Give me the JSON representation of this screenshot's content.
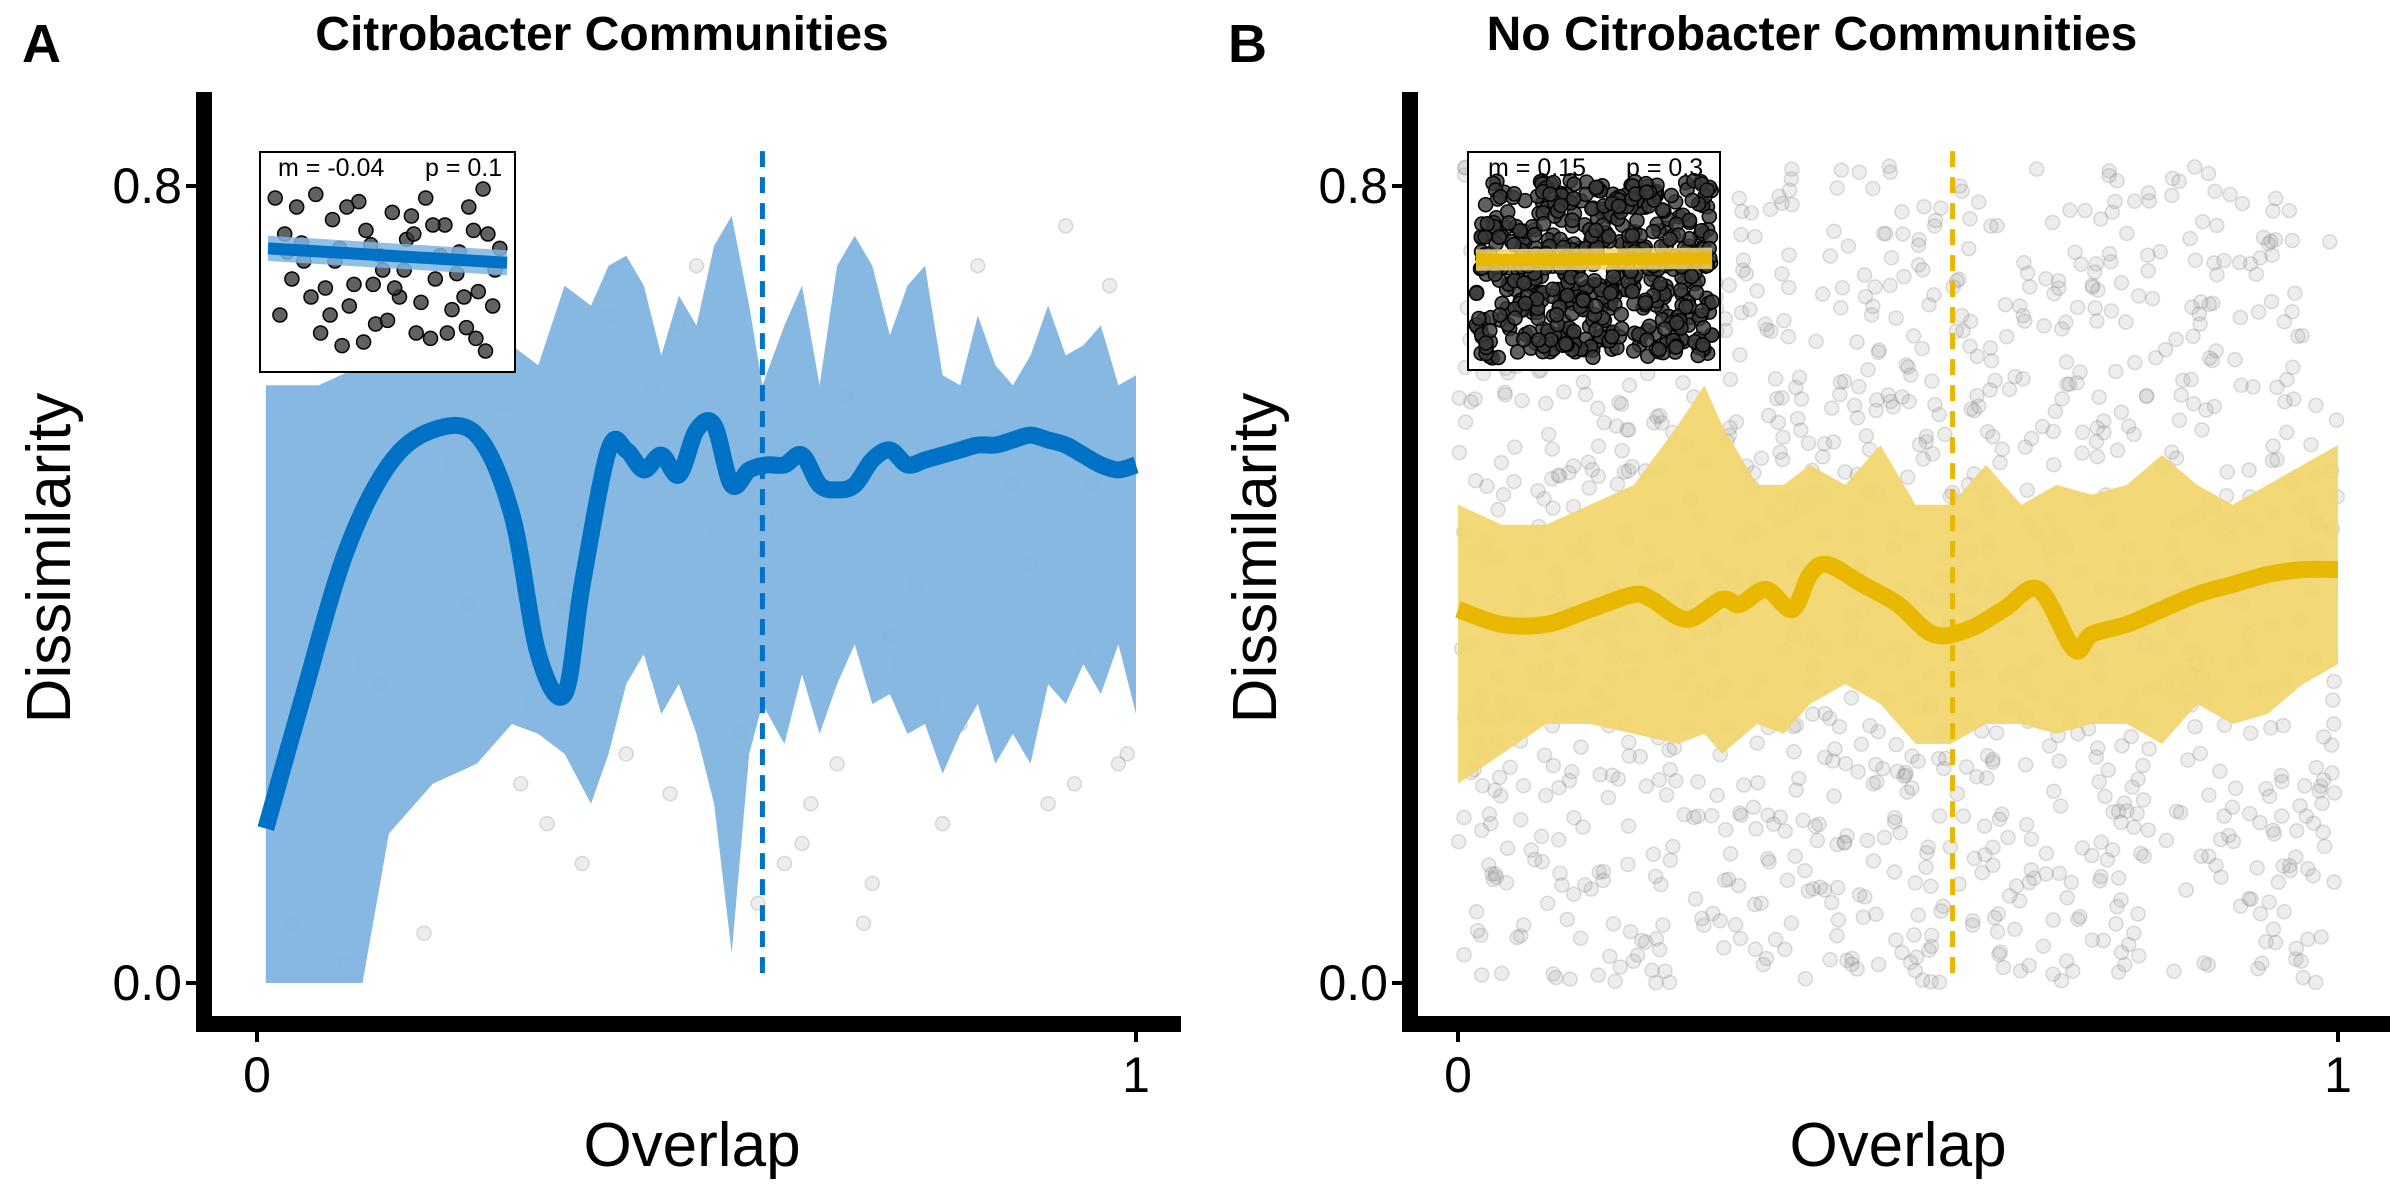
{
  "chart_data": [
    {
      "type": "scatter",
      "panel": "A",
      "title": "Citrobacter Communities",
      "xlabel": "Overlap",
      "ylabel": "Dissimilarity",
      "xlim": [
        0,
        1
      ],
      "ylim": [
        0,
        0.8
      ],
      "x_ticks": [
        {
          "value": 0,
          "label": "0"
        },
        {
          "value": 1,
          "label": "1"
        }
      ],
      "y_ticks": [
        {
          "value": 0.0,
          "label": "0.0"
        },
        {
          "value": 0.8,
          "label": "0.8"
        }
      ],
      "color": "#0072C6",
      "band_color": "#7FB4E0",
      "vline_x": 0.575,
      "smooth_fit": {
        "x": [
          0.01,
          0.05,
          0.1,
          0.15,
          0.2,
          0.25,
          0.29,
          0.32,
          0.35,
          0.37,
          0.4,
          0.42,
          0.44,
          0.46,
          0.48,
          0.5,
          0.52,
          0.54,
          0.56,
          0.58,
          0.6,
          0.62,
          0.64,
          0.66,
          0.68,
          0.7,
          0.72,
          0.74,
          0.76,
          0.78,
          0.8,
          0.82,
          0.84,
          0.86,
          0.88,
          0.9,
          0.92,
          0.94,
          0.96,
          0.98,
          1.0
        ],
        "y": [
          0.155,
          0.28,
          0.43,
          0.52,
          0.555,
          0.55,
          0.47,
          0.33,
          0.29,
          0.4,
          0.535,
          0.535,
          0.515,
          0.53,
          0.51,
          0.555,
          0.56,
          0.5,
          0.515,
          0.52,
          0.52,
          0.53,
          0.5,
          0.495,
          0.5,
          0.525,
          0.535,
          0.52,
          0.525,
          0.53,
          0.535,
          0.54,
          0.54,
          0.545,
          0.55,
          0.545,
          0.54,
          0.53,
          0.52,
          0.515,
          0.52
        ]
      },
      "ci_band": {
        "x": [
          0.01,
          0.07,
          0.12,
          0.15,
          0.2,
          0.25,
          0.29,
          0.32,
          0.35,
          0.38,
          0.4,
          0.42,
          0.44,
          0.46,
          0.48,
          0.5,
          0.52,
          0.54,
          0.56,
          0.575,
          0.6,
          0.62,
          0.64,
          0.66,
          0.68,
          0.7,
          0.72,
          0.74,
          0.76,
          0.78,
          0.8,
          0.82,
          0.84,
          0.86,
          0.88,
          0.9,
          0.92,
          0.94,
          0.96,
          0.98,
          1.0
        ],
        "upper": [
          0.6,
          0.6,
          0.62,
          0.68,
          0.68,
          0.67,
          0.64,
          0.62,
          0.7,
          0.68,
          0.72,
          0.73,
          0.7,
          0.63,
          0.69,
          0.66,
          0.74,
          0.77,
          0.68,
          0.6,
          0.66,
          0.7,
          0.6,
          0.72,
          0.75,
          0.72,
          0.65,
          0.7,
          0.72,
          0.61,
          0.6,
          0.67,
          0.62,
          0.6,
          0.63,
          0.68,
          0.63,
          0.64,
          0.66,
          0.6,
          0.61
        ],
        "lower": [
          0.0,
          0.0,
          0.0,
          0.15,
          0.2,
          0.22,
          0.26,
          0.25,
          0.23,
          0.18,
          0.23,
          0.3,
          0.33,
          0.27,
          0.3,
          0.25,
          0.18,
          0.03,
          0.23,
          0.28,
          0.24,
          0.31,
          0.25,
          0.3,
          0.34,
          0.28,
          0.29,
          0.25,
          0.26,
          0.21,
          0.25,
          0.28,
          0.22,
          0.25,
          0.22,
          0.3,
          0.28,
          0.32,
          0.29,
          0.34,
          0.27
        ]
      },
      "scatter_points": {
        "x": [
          0.04,
          0.1,
          0.16,
          0.19,
          0.24,
          0.3,
          0.33,
          0.37,
          0.42,
          0.47,
          0.5,
          0.55,
          0.58,
          0.62,
          0.66,
          0.7,
          0.73,
          0.77,
          0.82,
          0.86,
          0.9,
          0.94,
          0.97,
          0.08,
          0.14,
          0.28,
          0.35,
          0.45,
          0.63,
          0.69,
          0.75,
          0.8,
          0.88,
          0.93,
          0.98,
          0.05,
          0.22,
          0.4,
          0.52,
          0.6,
          0.72,
          0.84,
          0.92,
          0.99,
          0.12,
          0.31,
          0.48,
          0.57,
          0.67,
          0.78,
          0.95
        ],
        "y": [
          0.06,
          0.02,
          0.68,
          0.05,
          0.38,
          0.2,
          0.16,
          0.12,
          0.23,
          0.19,
          0.72,
          0.25,
          0.47,
          0.14,
          0.22,
          0.1,
          0.32,
          0.28,
          0.72,
          0.5,
          0.18,
          0.33,
          0.7,
          0.45,
          0.3,
          0.58,
          0.38,
          0.6,
          0.18,
          0.06,
          0.4,
          0.26,
          0.42,
          0.2,
          0.22,
          0.63,
          0.52,
          0.67,
          0.45,
          0.12,
          0.35,
          0.55,
          0.76,
          0.23,
          0.32,
          0.28,
          0.66,
          0.08,
          0.59,
          0.16,
          0.5
        ]
      },
      "inset": {
        "slope_label": "m = -0.04",
        "p_label": "p = 0.1",
        "fit_start": 0.62,
        "fit_end": 0.54,
        "ci_halfwidth": 0.07,
        "points": {
          "x": [
            0.03,
            0.07,
            0.12,
            0.15,
            0.2,
            0.24,
            0.27,
            0.3,
            0.34,
            0.38,
            0.41,
            0.45,
            0.48,
            0.52,
            0.55,
            0.58,
            0.62,
            0.66,
            0.7,
            0.74,
            0.77,
            0.8,
            0.84,
            0.88,
            0.92,
            0.95,
            0.05,
            0.1,
            0.18,
            0.22,
            0.28,
            0.33,
            0.36,
            0.43,
            0.5,
            0.57,
            0.6,
            0.64,
            0.68,
            0.72,
            0.79,
            0.83,
            0.86,
            0.9,
            0.94,
            0.97,
            0.14,
            0.26,
            0.4,
            0.47,
            0.53,
            0.61,
            0.75,
            0.82,
            0.91,
            0.08,
            0.31,
            0.44,
            0.69,
            0.87
          ],
          "y": [
            0.9,
            0.7,
            0.85,
            0.55,
            0.92,
            0.4,
            0.78,
            0.62,
            0.3,
            0.88,
            0.72,
            0.2,
            0.5,
            0.82,
            0.35,
            0.67,
            0.15,
            0.9,
            0.45,
            0.75,
            0.28,
            0.6,
            0.85,
            0.38,
            0.7,
            0.5,
            0.25,
            0.45,
            0.35,
            0.15,
            0.55,
            0.85,
            0.42,
            0.64,
            0.22,
            0.5,
            0.8,
            0.32,
            0.12,
            0.58,
            0.48,
            0.18,
            0.72,
            0.95,
            0.3,
            0.62,
            0.65,
            0.25,
            0.1,
            0.58,
            0.4,
            0.7,
            0.15,
            0.35,
            0.05,
            0.6,
            0.08,
            0.42,
            0.75,
            0.12
          ]
        }
      }
    },
    {
      "type": "scatter",
      "panel": "B",
      "title": "No Citrobacter Communities",
      "xlabel": "Overlap",
      "ylabel": "Dissimilarity",
      "xlim": [
        0,
        1
      ],
      "ylim": [
        0,
        0.8
      ],
      "x_ticks": [
        {
          "value": 0,
          "label": "0"
        },
        {
          "value": 1,
          "label": "1"
        }
      ],
      "y_ticks": [
        {
          "value": 0.0,
          "label": "0.0"
        },
        {
          "value": 0.8,
          "label": "0.8"
        }
      ],
      "color": "#E8B800",
      "band_color": "#F2D670",
      "vline_x": 0.562,
      "smooth_fit": {
        "x": [
          0.0,
          0.05,
          0.1,
          0.15,
          0.2,
          0.22,
          0.26,
          0.3,
          0.32,
          0.35,
          0.38,
          0.4,
          0.42,
          0.46,
          0.5,
          0.54,
          0.58,
          0.62,
          0.66,
          0.7,
          0.72,
          0.76,
          0.8,
          0.84,
          0.88,
          0.92,
          0.96,
          1.0
        ],
        "y": [
          0.375,
          0.36,
          0.36,
          0.375,
          0.39,
          0.385,
          0.365,
          0.385,
          0.38,
          0.395,
          0.375,
          0.41,
          0.42,
          0.4,
          0.38,
          0.35,
          0.355,
          0.375,
          0.395,
          0.335,
          0.35,
          0.36,
          0.375,
          0.39,
          0.4,
          0.41,
          0.415,
          0.415
        ]
      },
      "ci_band": {
        "x": [
          0.0,
          0.05,
          0.1,
          0.15,
          0.2,
          0.25,
          0.28,
          0.3,
          0.34,
          0.37,
          0.4,
          0.44,
          0.48,
          0.52,
          0.56,
          0.6,
          0.64,
          0.68,
          0.72,
          0.76,
          0.8,
          0.84,
          0.88,
          0.92,
          0.96,
          1.0
        ],
        "upper": [
          0.48,
          0.46,
          0.46,
          0.48,
          0.5,
          0.56,
          0.6,
          0.56,
          0.5,
          0.5,
          0.52,
          0.5,
          0.54,
          0.48,
          0.48,
          0.52,
          0.48,
          0.5,
          0.49,
          0.5,
          0.53,
          0.5,
          0.48,
          0.5,
          0.52,
          0.54
        ],
        "lower": [
          0.2,
          0.23,
          0.26,
          0.26,
          0.25,
          0.24,
          0.25,
          0.23,
          0.26,
          0.25,
          0.28,
          0.3,
          0.28,
          0.24,
          0.24,
          0.26,
          0.26,
          0.25,
          0.26,
          0.26,
          0.24,
          0.28,
          0.26,
          0.27,
          0.3,
          0.32
        ]
      },
      "scatter_points": {
        "generated": true,
        "count": 1250,
        "seed": 7,
        "x_range": [
          0,
          1
        ],
        "y_range": [
          0,
          0.82
        ]
      },
      "inset": {
        "slope_label": "m = 0.15",
        "p_label": "p = 0.3",
        "fit_start": 0.55,
        "fit_end": 0.56,
        "ci_halfwidth": 0.06,
        "points": {
          "generated": true,
          "count": 550,
          "seed": 11
        }
      }
    }
  ]
}
